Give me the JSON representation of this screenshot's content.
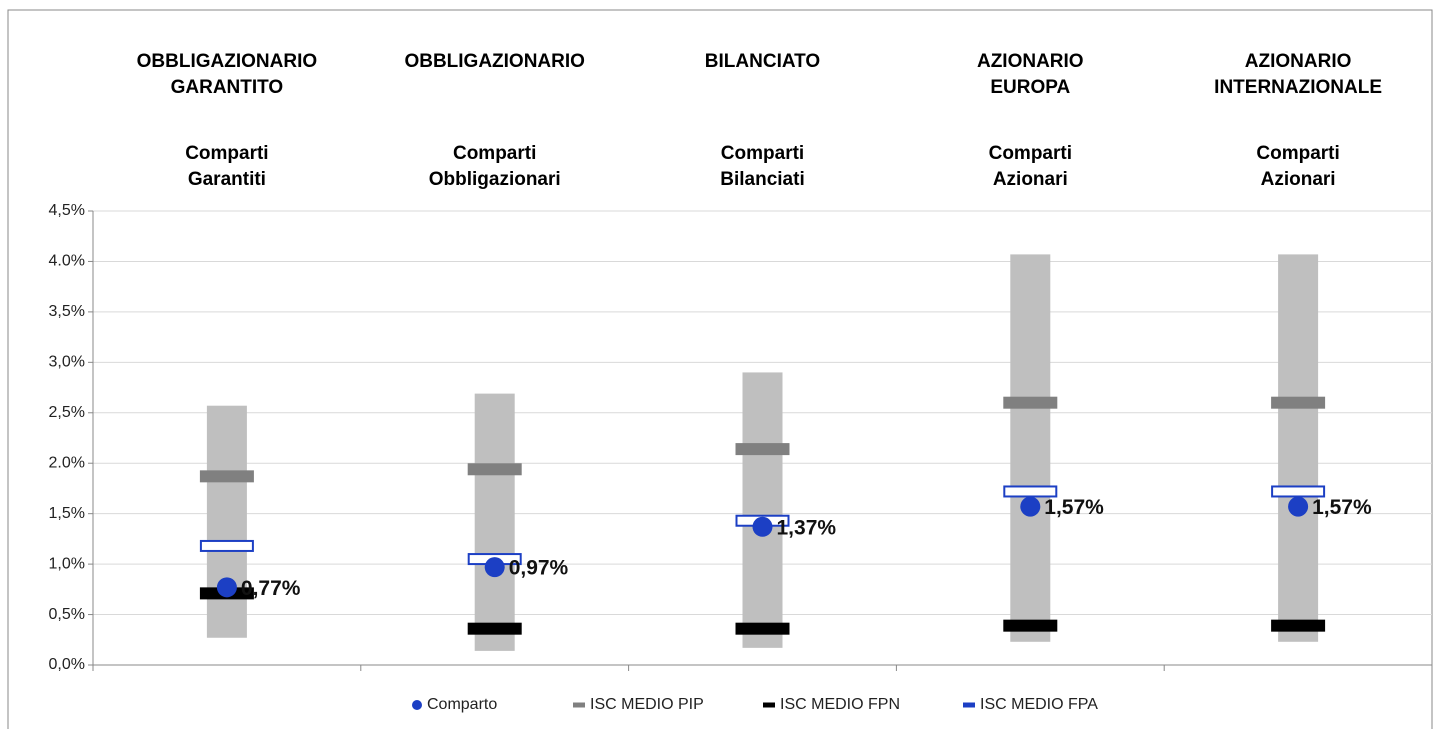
{
  "chart_data": {
    "type": "range-marker",
    "categories": [
      "OBBLIGAZIONARIO\nGARANTITO",
      "OBBLIGAZIONARIO",
      "BILANCIATO",
      "AZIONARIO\nEUROPA",
      "AZIONARIO\nINTERNAZIONALE"
    ],
    "subcategories": [
      "Comparti\nGarantiti",
      "Comparti\nObbligazionari",
      "Comparti\nBilanciati",
      "Comparti\nAzionari",
      "Comparti\nAzionari"
    ],
    "range_low": [
      0.27,
      0.14,
      0.17,
      0.23,
      0.23
    ],
    "range_high": [
      2.57,
      2.69,
      2.9,
      4.07,
      4.07
    ],
    "range_color": "#bfbfbf",
    "series": [
      {
        "name": "Comparto",
        "color": "#1c3fc4",
        "marker": "dot",
        "values": [
          0.77,
          0.97,
          1.37,
          1.57,
          1.57
        ],
        "value_labels": [
          "0,77%",
          "0,97%",
          "1,37%",
          "1,57%",
          "1,57%"
        ]
      },
      {
        "name": "ISC MEDIO PIP",
        "color": "#808080",
        "marker": "dash",
        "values": [
          1.87,
          1.94,
          2.14,
          2.6,
          2.6
        ]
      },
      {
        "name": "ISC MEDIO FPN",
        "color": "#000000",
        "marker": "dash",
        "values": [
          0.71,
          0.36,
          0.36,
          0.39,
          0.39
        ]
      },
      {
        "name": "ISC MEDIO FPA",
        "color": "#1c3fc4",
        "marker": "hollow-dash",
        "values": [
          1.18,
          1.05,
          1.43,
          1.72,
          1.72
        ]
      }
    ],
    "ylim": [
      0,
      4.5
    ],
    "yticks": [
      {
        "value": 0,
        "label": "0,0%"
      },
      {
        "value": 0.5,
        "label": "0,5%"
      },
      {
        "value": 1,
        "label": "1,0%"
      },
      {
        "value": 1.5,
        "label": "1,5%"
      },
      {
        "value": 2,
        "label": "2.0%"
      },
      {
        "value": 2.5,
        "label": "2,5%"
      },
      {
        "value": 3,
        "label": "3,0%"
      },
      {
        "value": 3.5,
        "label": "3,5%"
      },
      {
        "value": 4,
        "label": "4.0%"
      },
      {
        "value": 4.5,
        "label": "4,5%"
      }
    ],
    "grid": true
  }
}
